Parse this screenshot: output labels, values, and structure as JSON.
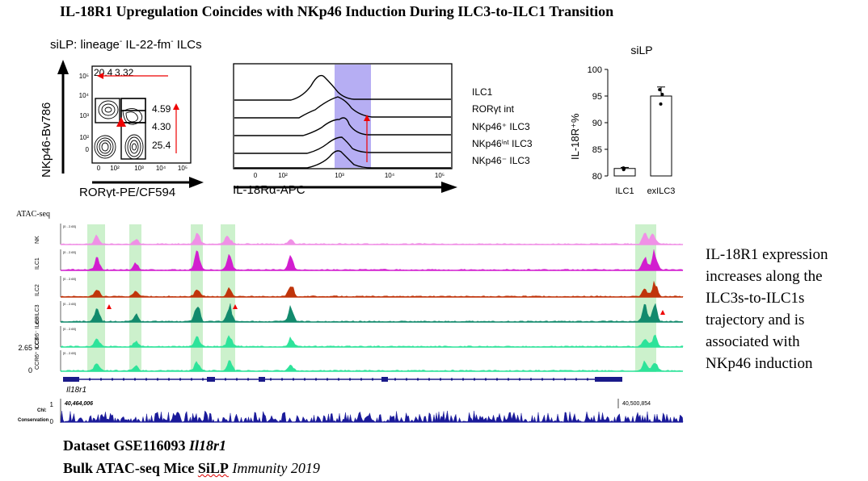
{
  "title": "IL-18R1 Upregulation Coincides with NKp46 Induction During ILC3-to-ILC1 Transition",
  "flow": {
    "header_prefix": "siLP: lineage",
    "header_sup1": "-",
    "header_mid": " IL-22-fm",
    "header_sup2": "-",
    "header_suffix": " ILCs",
    "ylabel": "NKp46-Bv786",
    "xlabel": "RORγt-PE/CF594",
    "gates": [
      "20.4",
      "3.32",
      "4.59",
      "4.30",
      "25.4"
    ],
    "yticks": [
      "10⁵",
      "10⁴",
      "10³",
      "10²",
      "0"
    ],
    "xticks": [
      "0",
      "10²",
      "10³",
      "10⁴",
      "10⁵"
    ]
  },
  "histogram": {
    "xlabel": "IL-18Rα-APC",
    "xticks": [
      "0",
      "10²",
      "10³",
      "10⁴",
      "10⁵"
    ],
    "labels": [
      "ILC1",
      "RORγt int",
      "NKp46⁺ ILC3",
      "NKp46ⁱⁿᵗ ILC3",
      "NKp46⁻ ILC3"
    ]
  },
  "bar_chart": {
    "title": "siLP",
    "ylabel": "IL-18R⁺%",
    "chart_data": {
      "type": "bar",
      "categories": [
        "ILC1",
        "exILC3"
      ],
      "values": [
        81.4,
        95.0
      ],
      "errors": [
        0.2,
        1.7
      ],
      "points": [
        [
          81.2,
          81.5,
          81.4
        ],
        [
          93.5,
          95.3,
          96.2
        ]
      ],
      "yticks": [
        "80",
        "85",
        "90",
        "95",
        "100"
      ],
      "ylim": [
        80,
        100
      ]
    }
  },
  "atac": {
    "label": "ATAC-seq",
    "tracks": [
      {
        "name": "NK",
        "color": "#f090e6",
        "range": "[0 - 2.65]"
      },
      {
        "name": "ILC1",
        "color": "#d21ecf",
        "range": "[0 - 2.65]"
      },
      {
        "name": "ILC2",
        "color": "#c0350b",
        "range": "[0 - 2.65]"
      },
      {
        "name": "ex-ILC3",
        "color": "#128a6d",
        "range": "[0 - 2.65]"
      },
      {
        "name": "CCR6⁻ ILC3",
        "color": "#2ee39a",
        "range": "[0 - 2.65]"
      },
      {
        "name": "CCR6⁺ ILC3",
        "color": "#2ee39a",
        "range": "[0 - 2.65]"
      }
    ],
    "scale_top": "2.65",
    "scale_bottom": "0",
    "gene": "Il18r1",
    "coord_left": "40,464,006",
    "coord_right": "40,500,854",
    "cons_label1": "Chl:",
    "cons_label2": "Conservation",
    "cons_top": "1",
    "cons_bottom": "0"
  },
  "side_text": [
    "IL-18R1 expression",
    "increases along the",
    "ILC3s-to-ILC1s",
    "trajectory and is",
    "associated with",
    "NKp46 induction"
  ],
  "footer": {
    "line1_a": "Dataset GSE116093 ",
    "line1_b": "Il18r1",
    "line2_a": "Bulk ATAC-seq Mice ",
    "line2_b": "SiLP",
    "line2_c": " Immunity 2019"
  }
}
